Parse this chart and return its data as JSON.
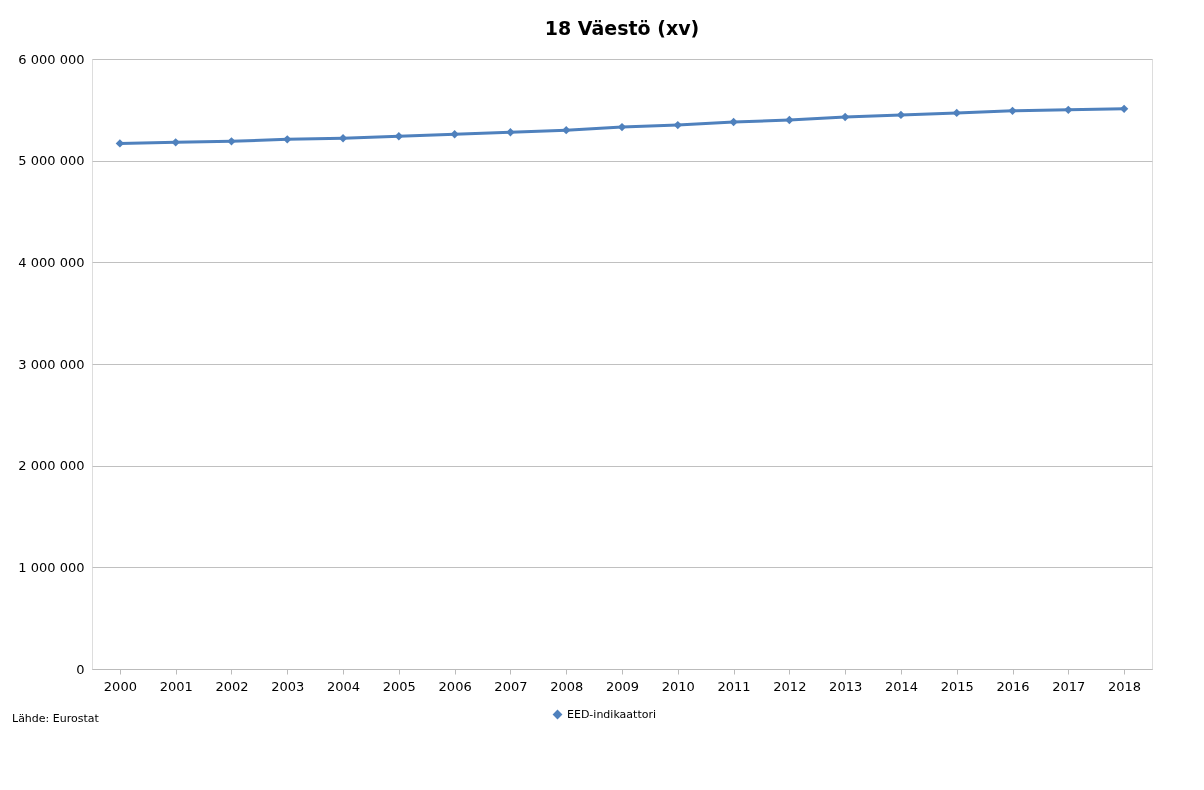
{
  "chart_data": {
    "type": "line",
    "title": "18 Väestö (xv)",
    "categories": [
      "2000",
      "2001",
      "2002",
      "2003",
      "2004",
      "2005",
      "2006",
      "2007",
      "2008",
      "2009",
      "2010",
      "2011",
      "2012",
      "2013",
      "2014",
      "2015",
      "2016",
      "2017",
      "2018"
    ],
    "series": [
      {
        "name": "EED-indikaattori",
        "color": "#4f81bd",
        "values": [
          5170000,
          5180000,
          5190000,
          5210000,
          5220000,
          5240000,
          5260000,
          5280000,
          5300000,
          5330000,
          5350000,
          5380000,
          5400000,
          5430000,
          5450000,
          5470000,
          5490000,
          5500000,
          5510000
        ]
      }
    ],
    "ylim": [
      0,
      6000000
    ],
    "yticks": [
      {
        "value": 0,
        "label": "0"
      },
      {
        "value": 1000000,
        "label": "1 000 000"
      },
      {
        "value": 2000000,
        "label": "2 000 000"
      },
      {
        "value": 3000000,
        "label": "3 000 000"
      },
      {
        "value": 4000000,
        "label": "4 000 000"
      },
      {
        "value": 5000000,
        "label": "5 000 000"
      },
      {
        "value": 6000000,
        "label": "6 000 000"
      }
    ],
    "grid": "y",
    "legend": "bottom",
    "marker": "diamond",
    "line_style": "solid",
    "annotations": [
      "Lähde: Eurostat"
    ]
  }
}
